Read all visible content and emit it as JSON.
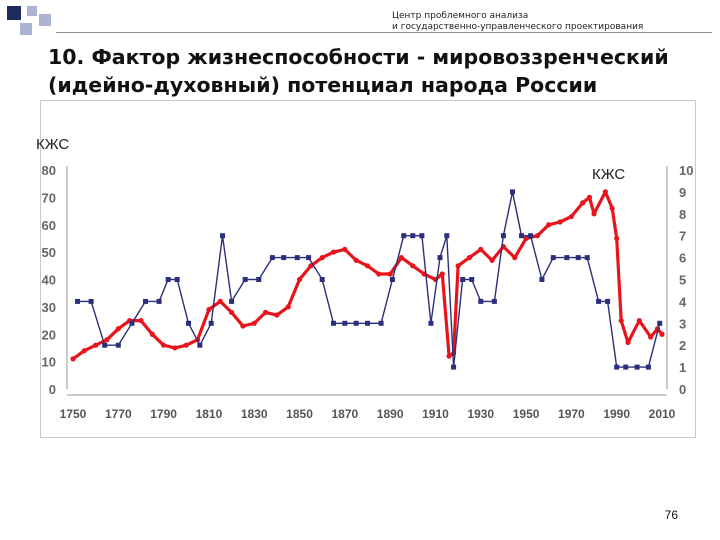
{
  "header": {
    "org_line1": "Центр проблемного анализа",
    "org_line2": "и государственно-управленческого проектирования"
  },
  "slide": {
    "title_line1": "10. Фактор жизнеспособности -  мировоззренческий",
    "title_line2": "(идейно-духовный) потенциал народа России",
    "page_number": "76"
  },
  "colors": {
    "red_series": "#e8141c",
    "blue_series": "#2b2f7a",
    "logo_dark": "#1f2a5c",
    "logo_light": "#aab3cf"
  },
  "chart_data": {
    "type": "line",
    "x_ticks": [
      1750,
      1770,
      1790,
      1810,
      1830,
      1850,
      1870,
      1890,
      1910,
      1930,
      1950,
      1970,
      1990,
      2010
    ],
    "xlim": [
      1750,
      2010
    ],
    "left_axis": {
      "label": "КЖС",
      "ylim": [
        0,
        80
      ],
      "ticks": [
        0,
        10,
        20,
        30,
        40,
        50,
        60,
        70,
        80
      ]
    },
    "right_axis": {
      "label": "КЖС",
      "ylim": [
        0,
        10
      ],
      "ticks": [
        0,
        1,
        2,
        3,
        4,
        5,
        6,
        7,
        8,
        9,
        10
      ]
    },
    "series": [
      {
        "axis": "left",
        "color": "#e8141c",
        "x": [
          1750,
          1755,
          1760,
          1765,
          1770,
          1775,
          1780,
          1785,
          1790,
          1795,
          1800,
          1805,
          1810,
          1815,
          1820,
          1825,
          1830,
          1835,
          1840,
          1845,
          1850,
          1855,
          1860,
          1865,
          1870,
          1875,
          1880,
          1885,
          1890,
          1895,
          1900,
          1905,
          1910,
          1913,
          1916,
          1918,
          1920,
          1925,
          1930,
          1935,
          1940,
          1945,
          1950,
          1955,
          1960,
          1965,
          1970,
          1975,
          1978,
          1980,
          1985,
          1988,
          1990,
          1992,
          1995,
          2000,
          2005,
          2008,
          2010
        ],
        "y": [
          11,
          14,
          16,
          18,
          22,
          25,
          25,
          20,
          16,
          15,
          16,
          18,
          29,
          32,
          28,
          23,
          24,
          28,
          27,
          30,
          40,
          45,
          48,
          50,
          51,
          47,
          45,
          42,
          42,
          48,
          45,
          42,
          40,
          42,
          12,
          13,
          45,
          48,
          51,
          47,
          52,
          48,
          55,
          56,
          60,
          61,
          63,
          68,
          70,
          64,
          72,
          66,
          55,
          25,
          17,
          25,
          19,
          22,
          20
        ]
      },
      {
        "axis": "right",
        "color": "#2b2f7a",
        "x": [
          1752,
          1758,
          1764,
          1770,
          1776,
          1782,
          1788,
          1792,
          1796,
          1801,
          1806,
          1811,
          1816,
          1820,
          1826,
          1832,
          1838,
          1843,
          1849,
          1854,
          1860,
          1865,
          1870,
          1875,
          1880,
          1886,
          1891,
          1896,
          1900,
          1904,
          1908,
          1912,
          1915,
          1918,
          1922,
          1926,
          1930,
          1936,
          1940,
          1944,
          1948,
          1952,
          1957,
          1962,
          1968,
          1973,
          1977,
          1982,
          1986,
          1990,
          1994,
          1999,
          2004,
          2009
        ],
        "y": [
          4,
          4,
          2,
          2,
          3,
          4,
          4,
          5,
          5,
          3,
          2,
          3,
          7,
          4,
          5,
          5,
          6,
          6,
          6,
          6,
          5,
          3,
          3,
          3,
          3,
          3,
          5,
          7,
          7,
          7,
          3,
          6,
          7,
          1,
          5,
          5,
          4,
          4,
          7,
          9,
          7,
          7,
          5,
          6,
          6,
          6,
          6,
          4,
          4,
          1,
          1,
          1,
          1,
          3
        ]
      }
    ],
    "grid": false
  }
}
